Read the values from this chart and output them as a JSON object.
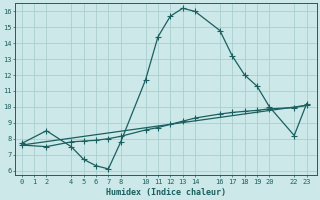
{
  "xlabel": "Humidex (Indice chaleur)",
  "bg_color": "#cde8e8",
  "grid_color": "#aacece",
  "line_color": "#1a6060",
  "xlim": [
    -0.5,
    23.8
  ],
  "ylim": [
    5.7,
    16.5
  ],
  "xticks": [
    0,
    1,
    2,
    4,
    5,
    6,
    7,
    8,
    10,
    11,
    12,
    13,
    14,
    16,
    17,
    18,
    19,
    20,
    22,
    23
  ],
  "yticks": [
    6,
    7,
    8,
    9,
    10,
    11,
    12,
    13,
    14,
    15,
    16
  ],
  "line1_x": [
    0,
    2,
    4,
    5,
    6,
    7,
    8,
    10,
    11,
    12,
    13,
    14,
    16,
    17,
    18,
    19,
    20,
    22,
    23
  ],
  "line1_y": [
    7.7,
    8.5,
    7.5,
    6.7,
    6.3,
    6.1,
    7.8,
    11.7,
    14.4,
    15.7,
    16.2,
    16.0,
    14.8,
    13.2,
    12.0,
    11.3,
    10.0,
    8.2,
    10.2
  ],
  "line2_x": [
    0,
    2,
    4,
    5,
    6,
    7,
    8,
    10,
    11,
    12,
    13,
    14,
    16,
    17,
    18,
    19,
    20,
    22,
    23
  ],
  "line2_y": [
    7.6,
    7.5,
    7.8,
    7.85,
    7.9,
    8.0,
    8.15,
    8.55,
    8.7,
    8.9,
    9.1,
    9.3,
    9.55,
    9.65,
    9.72,
    9.78,
    9.88,
    9.95,
    10.1
  ],
  "line3_x": [
    0,
    23
  ],
  "line3_y": [
    7.6,
    10.1
  ],
  "marker": "+",
  "markersize": 4.0,
  "linewidth": 0.9
}
